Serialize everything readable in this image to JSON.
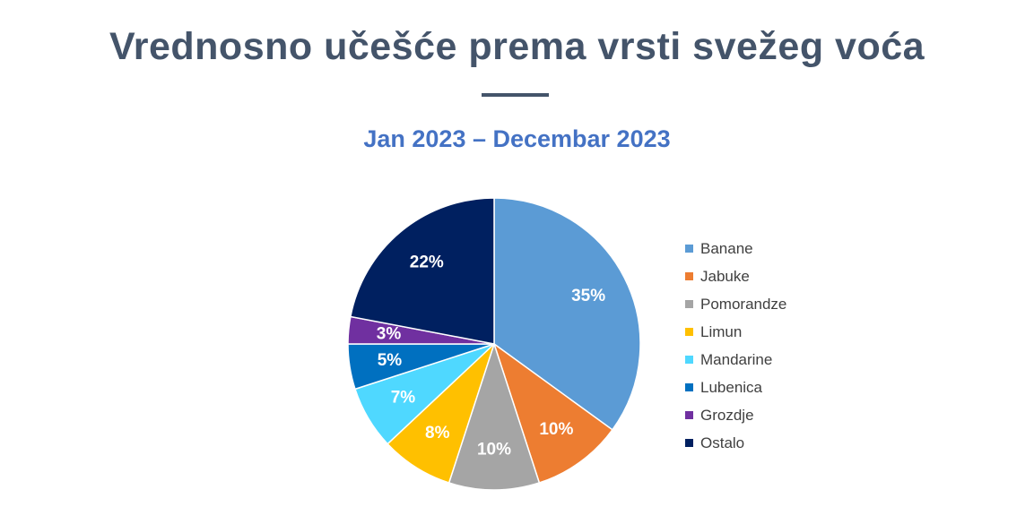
{
  "chart_data": {
    "type": "pie",
    "title": "Vrednosno učešće prema vrsti svežeg voća",
    "subtitle": "Jan 2023 – Decembar 2023",
    "categories": [
      "Banane",
      "Jabuke",
      "Pomorandze",
      "Limun",
      "Mandarine",
      "Lubenica",
      "Grozdje",
      "Ostalo"
    ],
    "values": [
      35,
      10,
      10,
      8,
      7,
      5,
      3,
      22
    ],
    "data_labels": [
      "35%",
      "10%",
      "10%",
      "8%",
      "7%",
      "5%",
      "3%",
      "22%"
    ],
    "colors": [
      "#5b9bd5",
      "#ed7d31",
      "#a5a5a5",
      "#ffc000",
      "#4fd8ff",
      "#0070c0",
      "#7030a0",
      "#002060"
    ],
    "legend_position": "right"
  },
  "colors": {
    "title": "#44546a",
    "subtitle": "#4472c4",
    "legend_text": "#404040"
  }
}
